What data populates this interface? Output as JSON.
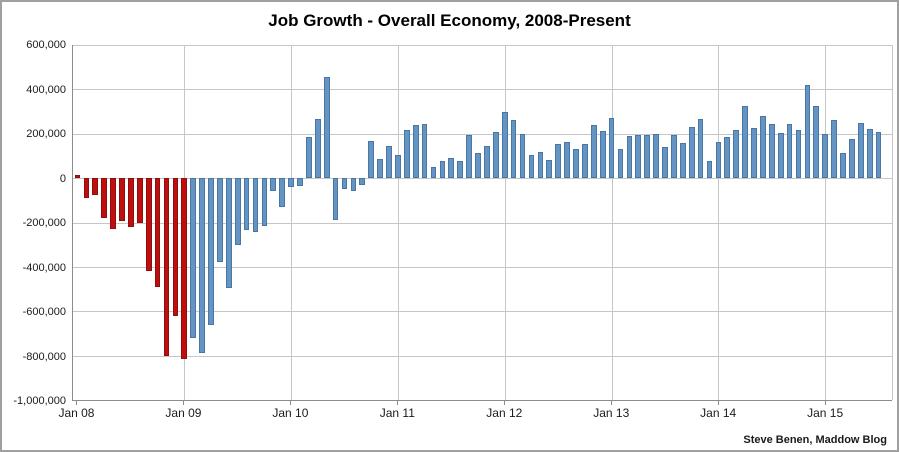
{
  "title": "Job Growth - Overall Economy, 2008-Present",
  "attribution": "Steve Benen, Maddow Blog",
  "colors": {
    "bar_red": "#c00d0d",
    "bar_red_border": "#8f0e0e",
    "bar_blue": "#6494c4",
    "bar_blue_border": "#4a76a3",
    "gridline": "#c6c6c6",
    "axis_line": "#8c8c8c",
    "background": "#ffffff",
    "frame_border": "#a0a0a0",
    "text": "#1a1a1a"
  },
  "chart_data": {
    "type": "bar",
    "title": "Job Growth - Overall Economy, 2008-Present",
    "xlabel": "",
    "ylabel": "",
    "ylim": [
      -1000000,
      600000
    ],
    "y_grid_interval": 200000,
    "grid": "on",
    "y_tick_labels": [
      "600,000",
      "400,000",
      "200,000",
      "0",
      "-200,000",
      "-400,000",
      "-600,000",
      "-800,000",
      "-1,000,000"
    ],
    "x_tick_labels": [
      "Jan 08",
      "Jan 09",
      "Jan 10",
      "Jan 11",
      "Jan 12",
      "Jan 13",
      "Jan 14",
      "Jan 15"
    ],
    "months_per_year_slot": 12,
    "total_month_slots": 92,
    "red_bar_count": 13,
    "red_bars_meaning": "Jan 2008 - Jan 2009",
    "blue_bars_meaning": "Feb 2009 - Jul 2015",
    "months": [
      "Jan 2008",
      "Feb 2008",
      "Mar 2008",
      "Apr 2008",
      "May 2008",
      "Jun 2008",
      "Jul 2008",
      "Aug 2008",
      "Sep 2008",
      "Oct 2008",
      "Nov 2008",
      "Dec 2008",
      "Jan 2009",
      "Feb 2009",
      "Mar 2009",
      "Apr 2009",
      "May 2009",
      "Jun 2009",
      "Jul 2009",
      "Aug 2009",
      "Sep 2009",
      "Oct 2009",
      "Nov 2009",
      "Dec 2009",
      "Jan 2010",
      "Feb 2010",
      "Mar 2010",
      "Apr 2010",
      "May 2010",
      "Jun 2010",
      "Jul 2010",
      "Aug 2010",
      "Sep 2010",
      "Oct 2010",
      "Nov 2010",
      "Dec 2010",
      "Jan 2011",
      "Feb 2011",
      "Mar 2011",
      "Apr 2011",
      "May 2011",
      "Jun 2011",
      "Jul 2011",
      "Aug 2011",
      "Sep 2011",
      "Oct 2011",
      "Nov 2011",
      "Dec 2011",
      "Jan 2012",
      "Feb 2012",
      "Mar 2012",
      "Apr 2012",
      "May 2012",
      "Jun 2012",
      "Jul 2012",
      "Aug 2012",
      "Sep 2012",
      "Oct 2012",
      "Nov 2012",
      "Dec 2012",
      "Jan 2013",
      "Feb 2013",
      "Mar 2013",
      "Apr 2013",
      "May 2013",
      "Jun 2013",
      "Jul 2013",
      "Aug 2013",
      "Sep 2013",
      "Oct 2013",
      "Nov 2013",
      "Dec 2013",
      "Jan 2014",
      "Feb 2014",
      "Mar 2014",
      "Apr 2014",
      "May 2014",
      "Jun 2014",
      "Jul 2014",
      "Aug 2014",
      "Sep 2014",
      "Oct 2014",
      "Nov 2014",
      "Dec 2014",
      "Jan 2015",
      "Feb 2015",
      "Mar 2015",
      "Apr 2015",
      "May 2015",
      "Jun 2015",
      "Jul 2015"
    ],
    "values": [
      15000,
      -88000,
      -75000,
      -180000,
      -230000,
      -193000,
      -222000,
      -200000,
      -420000,
      -490000,
      -800000,
      -620000,
      -815000,
      -720000,
      -790000,
      -660000,
      -380000,
      -495000,
      -300000,
      -233000,
      -242000,
      -215000,
      -58000,
      -128000,
      -40000,
      -35000,
      185000,
      268000,
      455000,
      -190000,
      -50000,
      -60000,
      -30000,
      166000,
      87000,
      147000,
      105000,
      216000,
      241000,
      244000,
      50000,
      78000,
      90000,
      78000,
      194000,
      113000,
      147000,
      210000,
      300000,
      261000,
      198000,
      105000,
      117000,
      83000,
      153000,
      161000,
      130000,
      153000,
      240000,
      212000,
      271000,
      133000,
      188000,
      194000,
      194000,
      198000,
      142000,
      194000,
      158000,
      231000,
      265000,
      77000,
      164000,
      185000,
      219000,
      323000,
      228000,
      281000,
      243000,
      205000,
      246000,
      216000,
      420000,
      323000,
      200000,
      262000,
      113000,
      175000,
      250000,
      222000,
      209000
    ]
  }
}
